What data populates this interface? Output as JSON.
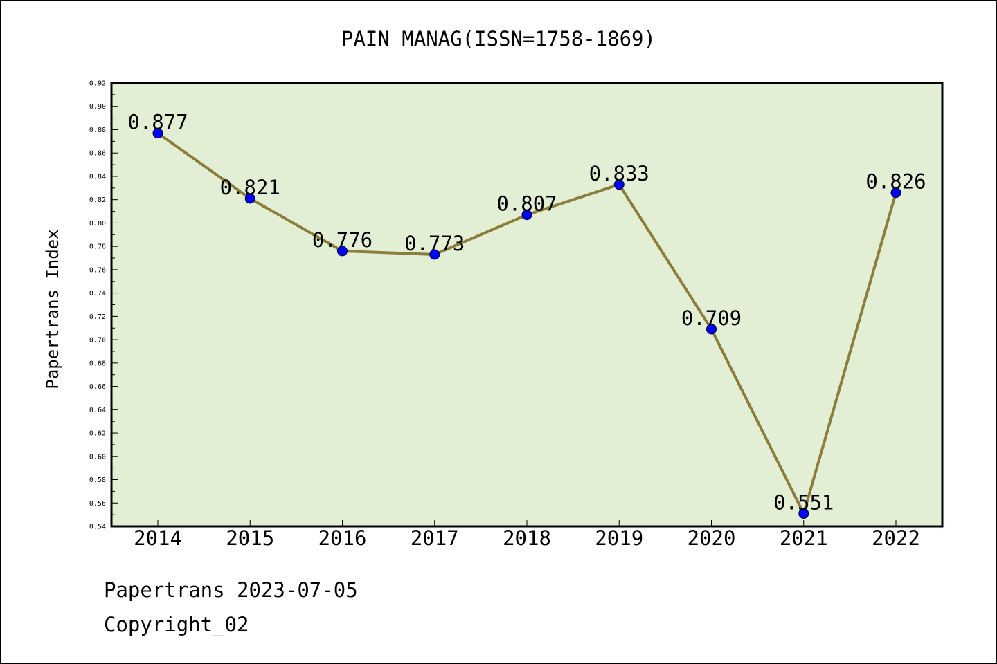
{
  "chart_data": {
    "type": "line",
    "title": "PAIN MANAG(ISSN=1758-1869)",
    "ylabel": "Papertrans Index",
    "xlabel": "",
    "categories": [
      "2014",
      "2015",
      "2016",
      "2017",
      "2018",
      "2019",
      "2020",
      "2021",
      "2022"
    ],
    "values": [
      0.877,
      0.821,
      0.776,
      0.773,
      0.807,
      0.833,
      0.709,
      0.551,
      0.826
    ],
    "data_labels": [
      "0.877",
      "0.821",
      "0.776",
      "0.773",
      "0.807",
      "0.833",
      "0.709",
      "0.551",
      "0.826"
    ],
    "ylim": [
      0.54,
      0.92
    ],
    "y_ticks": [
      "0.54",
      "0.56",
      "0.58",
      "0.60",
      "0.62",
      "0.64",
      "0.66",
      "0.68",
      "0.70",
      "0.72",
      "0.74",
      "0.76",
      "0.78",
      "0.80",
      "0.82",
      "0.84",
      "0.86",
      "0.88",
      "0.90",
      "0.92"
    ],
    "grid": false,
    "colors": {
      "plot_background": "#e2efd5",
      "line": "#8b7d3a",
      "marker": "#0000ff"
    }
  },
  "footer": {
    "date_line": "Papertrans 2023-07-05",
    "copyright": "Copyright_02"
  }
}
